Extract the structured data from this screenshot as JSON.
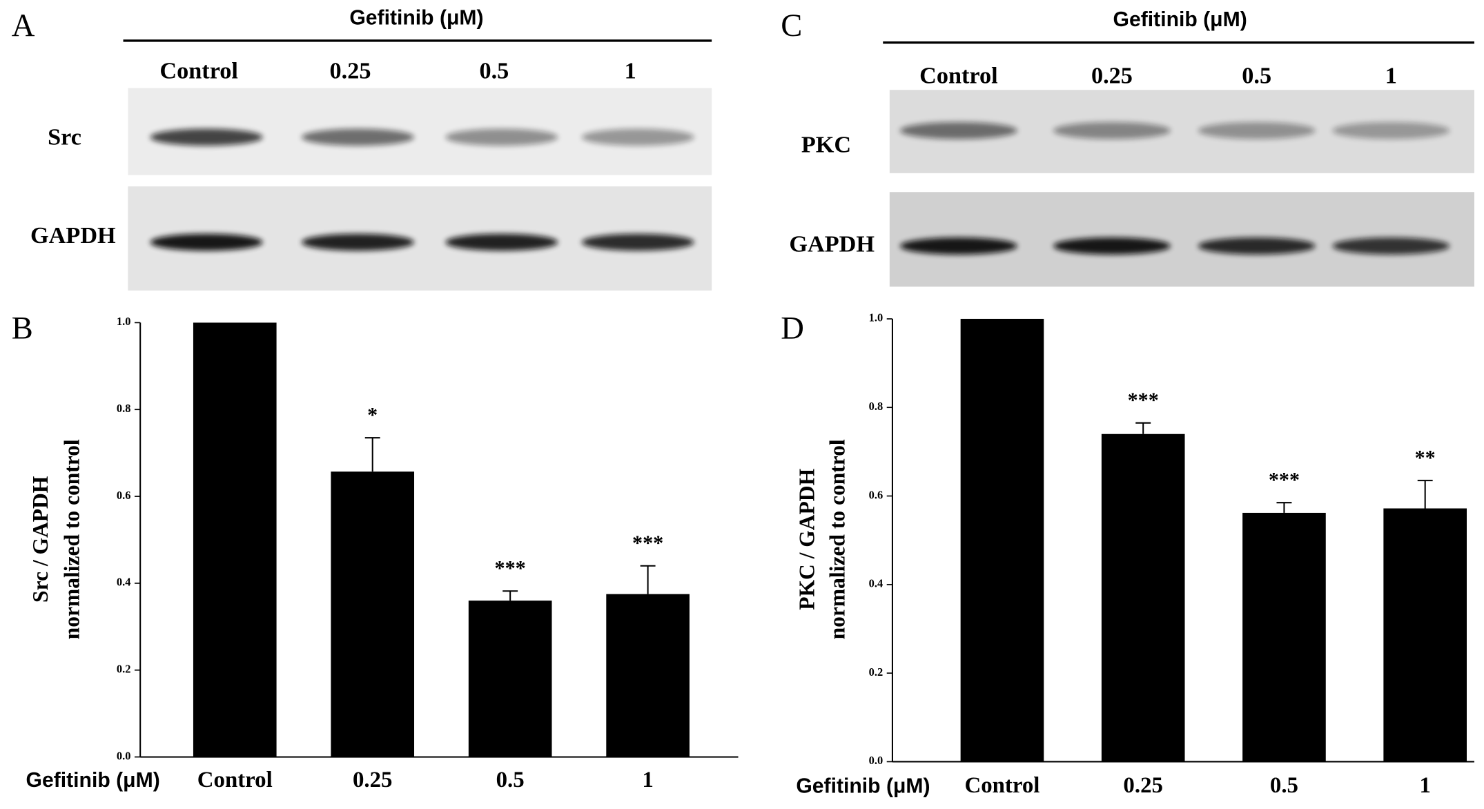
{
  "blots": [
    {
      "letter": "A",
      "header": "Gefitinib (μM)",
      "lanes": [
        "Control",
        "0.25",
        "0.5",
        "1"
      ],
      "rows": [
        "Src",
        "GAPDH"
      ]
    },
    {
      "letter": "C",
      "header": "Gefitinib (μM)",
      "lanes": [
        "Control",
        "0.25",
        "0.5",
        "1"
      ],
      "rows": [
        "PKC",
        "GAPDH"
      ]
    }
  ],
  "chart_data": [
    {
      "type": "bar",
      "letter": "B",
      "ylabel": [
        "Src / GAPDH",
        "normalized to control"
      ],
      "xlabel": "Gefitinib (μM)",
      "categories": [
        "Control",
        "0.25",
        "0.5",
        "1"
      ],
      "values": [
        1.0,
        0.657,
        0.36,
        0.375
      ],
      "errors": [
        null,
        0.078,
        0.022,
        0.065
      ],
      "annotations": [
        null,
        "*",
        "***",
        "***"
      ],
      "color": "#000000",
      "ylim": [
        0,
        1
      ],
      "yticks": [
        {
          "value": 0,
          "label": "0.0"
        },
        {
          "value": 0.2,
          "label": "0.2"
        },
        {
          "value": 0.4,
          "label": "0.4"
        },
        {
          "value": 0.6,
          "label": "0.6"
        },
        {
          "value": 0.8,
          "label": "0.8"
        },
        {
          "value": 1,
          "label": "1.0"
        }
      ]
    },
    {
      "type": "bar",
      "letter": "D",
      "ylabel": [
        "PKC / GAPDH",
        "normalized to control"
      ],
      "xlabel": "Gefitinib (μM)",
      "categories": [
        "Control",
        "0.25",
        "0.5",
        "1"
      ],
      "values": [
        1.0,
        0.74,
        0.562,
        0.572
      ],
      "errors": [
        null,
        0.025,
        0.023,
        0.063
      ],
      "annotations": [
        null,
        "***",
        "***",
        "**"
      ],
      "color": "#000000",
      "ylim": [
        0,
        1
      ],
      "yticks": [
        {
          "value": 0,
          "label": "0.0"
        },
        {
          "value": 0.2,
          "label": "0.2"
        },
        {
          "value": 0.4,
          "label": "0.4"
        },
        {
          "value": 0.6,
          "label": "0.6"
        },
        {
          "value": 0.8,
          "label": "0.8"
        },
        {
          "value": 1,
          "label": "1.0"
        }
      ]
    }
  ]
}
